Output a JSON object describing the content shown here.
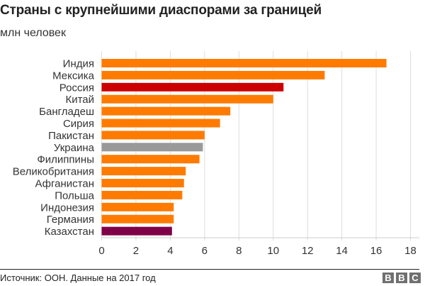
{
  "header": {
    "title": "Страны с крупнейшими диаспорами за границей",
    "subtitle": "млн человек"
  },
  "footer": {
    "source": "Источник: ООН. Данные на 2017 год",
    "logo_letters": [
      "B",
      "B",
      "C"
    ]
  },
  "colors": {
    "default": "#ff7b00",
    "russia": "#cc0000",
    "ukraine": "#999999",
    "kazakhstan": "#800048",
    "grid": "#dddddd",
    "axis": "#cccccc"
  },
  "chart_data": {
    "type": "bar",
    "orientation": "horizontal",
    "title": "Страны с крупнейшими диаспорами за границей",
    "subtitle": "млн человек",
    "xlabel": "",
    "ylabel": "",
    "xlim": [
      0,
      18
    ],
    "xticks": [
      0,
      2,
      4,
      6,
      8,
      10,
      12,
      14,
      16,
      18
    ],
    "grid": true,
    "legend": "none",
    "categories": [
      "Индия",
      "Мексика",
      "Россия",
      "Китай",
      "Бангладеш",
      "Сирия",
      "Пакистан",
      "Украина",
      "Филиппины",
      "Великобритания",
      "Афганистан",
      "Польша",
      "Индонезия",
      "Германия",
      "Казахстан"
    ],
    "values": [
      16.6,
      13.0,
      10.6,
      10.0,
      7.5,
      6.9,
      6.0,
      5.9,
      5.7,
      4.9,
      4.8,
      4.7,
      4.2,
      4.2,
      4.1
    ],
    "highlight": {
      "Россия": "russia",
      "Украина": "ukraine",
      "Казахстан": "kazakhstan"
    },
    "source": "Источник: ООН. Данные на 2017 год"
  }
}
